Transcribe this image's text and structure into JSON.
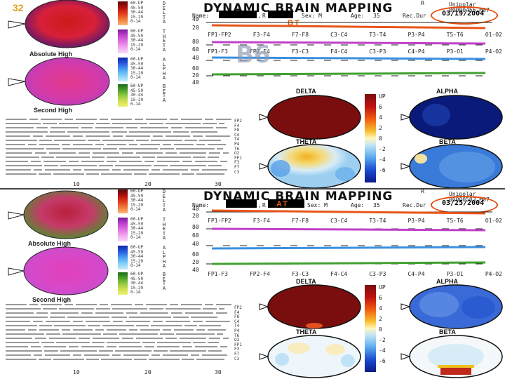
{
  "slide_number": "32",
  "legend": {
    "delta": [
      "60-UP",
      "45-59",
      "30-44",
      "15-29",
      "0-14"
    ],
    "theta": [
      "60-UP",
      "45-59",
      "30-44",
      "15-29",
      "0-14"
    ],
    "alpha": [
      "60-UP",
      "45-59",
      "30-44",
      "15-29",
      "0-14"
    ],
    "beta": [
      "60-UP",
      "45-59",
      "30-44",
      "15-29",
      "0-14"
    ],
    "words": {
      "delta": "DELTA",
      "theta": "THETA",
      "alpha": "ALPHA",
      "beta": "BETA"
    }
  },
  "panels": [
    {
      "title": "DYNAMIC BRAIN MAPPING",
      "reg": "R",
      "montage": "Unipolar",
      "record_id": "00000455.M07",
      "name_label": "Name:",
      "comma": ",",
      "r_label": "R",
      "sex": "Sex: M",
      "age_label": "Age:",
      "age": "35",
      "recdur_label": "Rec.Dur",
      "date": "03/19/2004",
      "tag": "BT",
      "watermark": "B6",
      "left_map_captions": [
        "Absolute High",
        "Second High"
      ],
      "axis": [
        "10",
        "20",
        "30"
      ],
      "channels_row1": [
        "FP1-FP2",
        "F3-F4",
        "F7-F8",
        "C3-C4",
        "T3-T4",
        "P3-P4",
        "T5-T6",
        "O1-O2"
      ],
      "channels_row2": [
        "FP1-F3",
        "FP2-F4",
        "F3-C3",
        "F4-C4",
        "C3-P3",
        "C4-P4",
        "P3-O1",
        "P4-O2"
      ],
      "scale_nums": [
        "40",
        "20",
        "80",
        "60",
        "40",
        "60",
        "20",
        "40"
      ],
      "topo": {
        "delta": "DELTA",
        "alpha": "ALPHA",
        "theta": "THETA",
        "beta": "BETA"
      },
      "scale_labels": [
        "UP",
        "6",
        "4",
        "2",
        "0",
        "-2",
        "-4",
        "-6"
      ],
      "right_channels": [
        "FP2",
        "F4",
        "F8",
        "C4",
        "T4",
        "P4",
        "T6",
        "O2",
        "FP1",
        "F3",
        "F7",
        "C3"
      ]
    },
    {
      "title": "DYNAMIC BRAIN MAPPING",
      "reg": "R",
      "montage": "Unipolar",
      "record_id": "00000503.M07",
      "name_label": "Name:",
      "comma": ",",
      "r_label": "R",
      "sex": "Sex: M",
      "age_label": "Age:",
      "age": "35",
      "recdur_label": "Rec.Dur",
      "date": "03/25/2004",
      "tag": "AT",
      "watermark": "",
      "left_map_captions": [
        "Absolute High",
        "Second High"
      ],
      "axis": [
        "10",
        "20",
        "30"
      ],
      "channels_row1": [
        "FP1-FP2",
        "F3-F4",
        "F7-F8",
        "C3-C4",
        "T3-T4",
        "P3-P4",
        "T5-T6",
        "O1-O2"
      ],
      "channels_row2": [
        "FP1-F3",
        "FP2-F4",
        "F3-C3",
        "F4-C4",
        "C3-P3",
        "C4-P4",
        "P3-O1",
        "P4-O2"
      ],
      "scale_nums": [
        "40",
        "20",
        "80",
        "60",
        "40",
        "60",
        "20",
        "40"
      ],
      "topo": {
        "delta": "DELTA",
        "alpha": "ALPHA",
        "theta": "THETA",
        "beta": "BETA"
      },
      "scale_labels": [
        "UP",
        "6",
        "4",
        "2",
        "0",
        "-2",
        "-4",
        "-6"
      ],
      "right_channels": [
        "FP2",
        "F4",
        "F8",
        "C4",
        "T4",
        "P4",
        "T6",
        "O2",
        "FP1",
        "F3",
        "F7",
        "C3"
      ]
    }
  ]
}
